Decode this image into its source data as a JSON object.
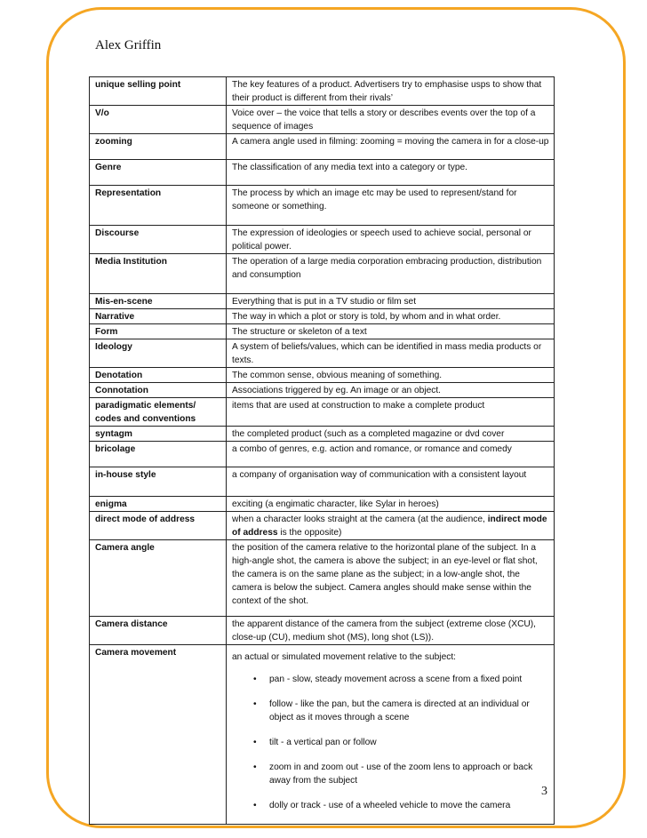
{
  "header": {
    "author": "Alex Griffin"
  },
  "footer": {
    "page_number": "3"
  },
  "colors": {
    "frame": "#f5a623"
  },
  "rows": [
    {
      "term": "unique selling point",
      "definition": "The key features of a product. Advertisers try to emphasise usps to show that their product is different from their rivals’"
    },
    {
      "term": "V/o",
      "definition": "Voice over – the voice that tells a story or describes events over the top of a sequence of images"
    },
    {
      "term": "zooming",
      "definition": "A camera angle used in filming: zooming = moving the camera in for a close-up"
    },
    {
      "term": "Genre",
      "definition": "The classification of any media text into a category or type."
    },
    {
      "term": "Representation",
      "definition": "The process by which an image etc may be used to represent/stand for someone or something."
    },
    {
      "term": "Discourse",
      "definition": "The expression of ideologies or speech used to achieve social, personal or political power."
    },
    {
      "term": "Media Institution",
      "definition": "The operation of a large media corporation embracing production, distribution and consumption"
    },
    {
      "term": "Mis-en-scene",
      "definition": "Everything that is put in a TV studio or film set"
    },
    {
      "term": "Narrative",
      "definition": "The way in which a plot or story is told, by whom and in what order."
    },
    {
      "term": "Form",
      "definition": "The structure or skeleton of a text"
    },
    {
      "term": "Ideology",
      "definition": "A system of beliefs/values, which can be identified in mass media products or texts."
    },
    {
      "term": "Denotation",
      "definition": "The common sense, obvious meaning of something."
    },
    {
      "term": "Connotation",
      "definition": "Associations triggered by eg. An image or an object."
    },
    {
      "term": "paradigmatic elements/ codes and conventions",
      "definition": "items that are used at construction to make a complete product"
    },
    {
      "term": "syntagm",
      "definition": "the completed product (such as a completed magazine or dvd cover"
    },
    {
      "term": "bricolage",
      "definition": "a combo of genres, e.g. action and romance, or romance and comedy"
    },
    {
      "term": "in-house style",
      "definition": "a company of organisation way of communication with a consistent layout"
    },
    {
      "term": "enigma",
      "definition": "exciting (a engimatic character, like Sylar in heroes)"
    },
    {
      "term": "direct mode of address",
      "definition_pre": "when a character looks straight at the camera (at the audience, ",
      "definition_bold": "indirect mode of address",
      "definition_post": " is the opposite)"
    },
    {
      "term": "Camera angle",
      "definition": "the position of the camera relative to the horizontal plane of the subject. In a high-angle shot, the camera is above the subject; in an eye-level or flat shot, the camera is on the same plane as the subject; in a low-angle shot, the camera is below the subject. Camera angles should make sense within the context of the shot."
    },
    {
      "term": "Camera distance",
      "definition": "the apparent distance of the camera from the subject (extreme close (XCU), close-up (CU), medium shot (MS), long shot (LS))."
    },
    {
      "term": "Camera movement",
      "definition": "an actual or simulated movement relative to the subject:",
      "bullets": [
        "pan - slow, steady movement across a scene from a fixed point",
        "follow - like the pan, but the camera is directed at an individual or object as it moves through a scene",
        "tilt - a vertical pan or follow",
        "zoom in and zoom out - use of the zoom lens to approach or back away from the subject",
        "dolly or track - use of a wheeled vehicle to move the camera"
      ]
    }
  ]
}
